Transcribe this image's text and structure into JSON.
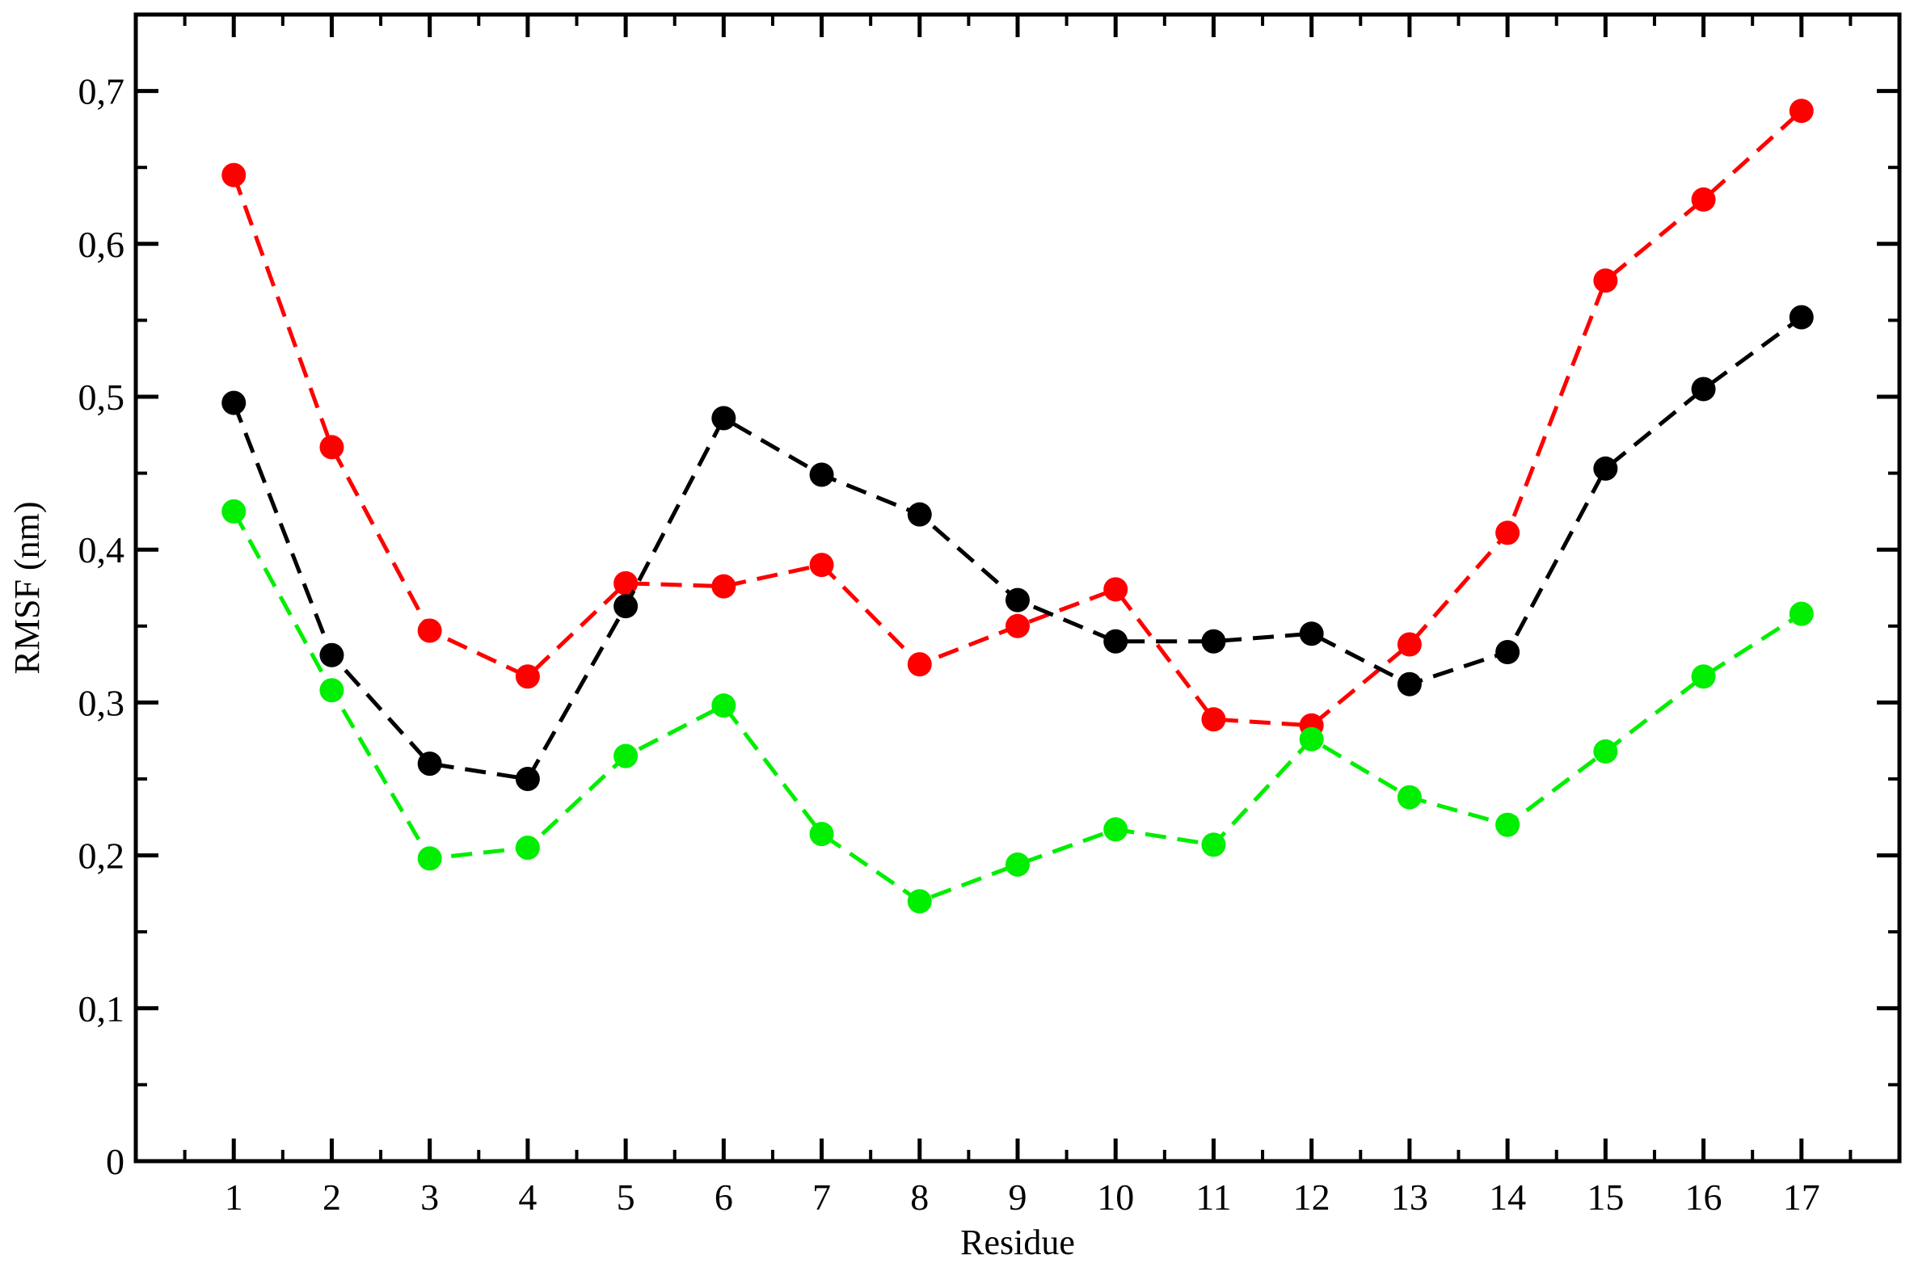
{
  "chart_data": {
    "type": "line",
    "xlabel": "Residue",
    "ylabel": "RMSF (nm)",
    "xlim": [
      0,
      18
    ],
    "ylim": [
      0,
      0.75
    ],
    "x": [
      1,
      2,
      3,
      4,
      5,
      6,
      7,
      8,
      9,
      10,
      11,
      12,
      13,
      14,
      15,
      16,
      17
    ],
    "xticks": [
      "1",
      "2",
      "3",
      "4",
      "5",
      "6",
      "7",
      "8",
      "9",
      "10",
      "11",
      "12",
      "13",
      "14",
      "15",
      "16",
      "17"
    ],
    "yticks": [
      {
        "value": 0,
        "label": "0"
      },
      {
        "value": 0.1,
        "label": "0,1"
      },
      {
        "value": 0.2,
        "label": "0,2"
      },
      {
        "value": 0.3,
        "label": "0,3"
      },
      {
        "value": 0.4,
        "label": "0,4"
      },
      {
        "value": 0.5,
        "label": "0,5"
      },
      {
        "value": 0.6,
        "label": "0,6"
      },
      {
        "value": 0.7,
        "label": "0,7"
      }
    ],
    "y_minor_step": 0.05,
    "grid": false,
    "legend": "none",
    "line_style": "dashed",
    "marker": "circle",
    "series": [
      {
        "color": "#ff0000",
        "values": [
          0.645,
          0.467,
          0.347,
          0.317,
          0.378,
          0.376,
          0.39,
          0.325,
          0.35,
          0.374,
          0.289,
          0.285,
          0.338,
          0.411,
          0.576,
          0.629,
          0.687
        ]
      },
      {
        "color": "#000000",
        "values": [
          0.496,
          0.331,
          0.26,
          0.25,
          0.363,
          0.486,
          0.449,
          0.423,
          0.367,
          0.34,
          0.34,
          0.345,
          0.312,
          0.333,
          0.453,
          0.505,
          0.552
        ]
      },
      {
        "color": "#00ee00",
        "values": [
          0.425,
          0.308,
          0.198,
          0.205,
          0.265,
          0.298,
          0.214,
          0.17,
          0.194,
          0.217,
          0.207,
          0.276,
          0.238,
          0.22,
          0.268,
          0.317,
          0.358
        ]
      }
    ]
  }
}
